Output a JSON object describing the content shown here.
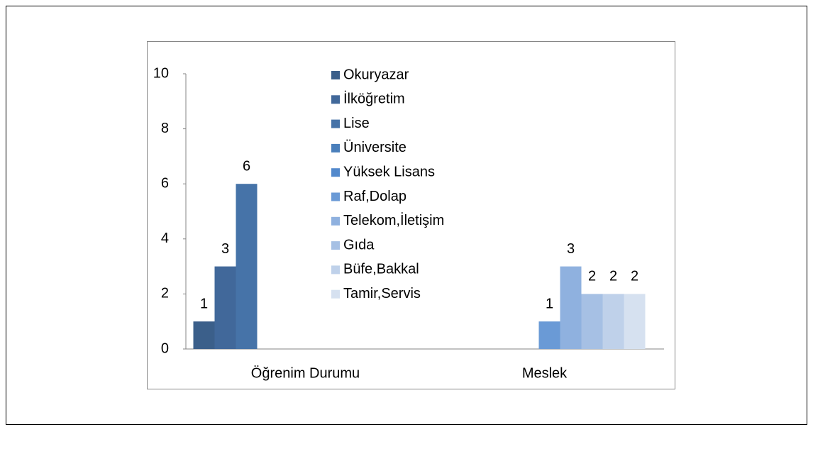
{
  "chart_data": {
    "type": "bar",
    "categories": [
      "Öğrenim Durumu",
      "Meslek"
    ],
    "series": [
      {
        "name": "Okuryazar",
        "color": "#3b5f8a",
        "values": [
          1,
          null
        ]
      },
      {
        "name": "İlköğretim",
        "color": "#41689a",
        "values": [
          3,
          null
        ]
      },
      {
        "name": "Lise",
        "color": "#4673a8",
        "values": [
          6,
          null
        ]
      },
      {
        "name": "Üniversite",
        "color": "#4a7fbb",
        "values": [
          null,
          null
        ]
      },
      {
        "name": "Yüksek Lisans",
        "color": "#5289cc",
        "values": [
          null,
          null
        ]
      },
      {
        "name": "Raf,Dolap",
        "color": "#6a9ad6",
        "values": [
          null,
          1
        ]
      },
      {
        "name": "Telekom,İletişim",
        "color": "#8fb1df",
        "values": [
          null,
          3
        ]
      },
      {
        "name": "Gıda",
        "color": "#a6c0e4",
        "values": [
          null,
          2
        ]
      },
      {
        "name": "Büfe,Bakkal",
        "color": "#bfd1ea",
        "values": [
          null,
          2
        ]
      },
      {
        "name": "Tamir,Servis",
        "color": "#d6e1f0",
        "values": [
          null,
          2
        ]
      }
    ],
    "ylim": [
      0,
      10
    ],
    "yticks": [
      0,
      2,
      4,
      6,
      8,
      10
    ],
    "grid": false,
    "data_labels": true
  }
}
